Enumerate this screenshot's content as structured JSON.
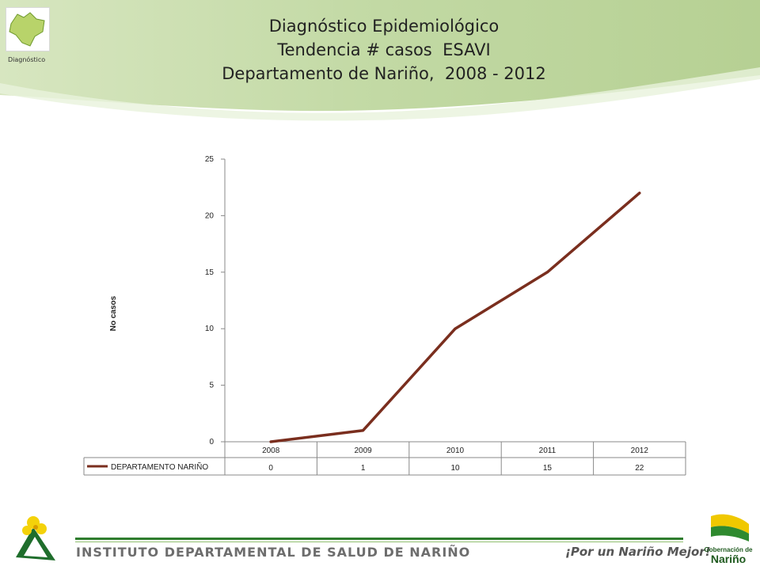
{
  "header": {
    "title_lines": [
      "Diagnóstico Epidemiológico",
      "Tendencia # casos  ESAVI",
      "Departamento de Nariño,  2008 - 2012"
    ],
    "logo_caption": "Diagnóstico"
  },
  "chart_data": {
    "type": "line",
    "categories": [
      "2008",
      "2009",
      "2010",
      "2011",
      "2012"
    ],
    "series": [
      {
        "name": "DEPARTAMENTO NARIÑO",
        "values": [
          0,
          1,
          10,
          15,
          22
        ],
        "color": "#7a2e1e"
      }
    ],
    "ylabel": "No casos",
    "ylim": [
      0,
      25
    ],
    "yticks": [
      0,
      5,
      10,
      15,
      20,
      25
    ],
    "grid": false,
    "data_table": true
  },
  "footer": {
    "institution": "INSTITUTO DEPARTAMENTAL DE SALUD DE NARIÑO",
    "slogan": "¡Por un Nariño Mejor!",
    "emblem_text": [
      "Gobernación de",
      "Nariño"
    ]
  },
  "colors": {
    "accent_green": "#2f7d2f",
    "light_green": "#c7dcaa",
    "line": "#7a2e1e"
  }
}
